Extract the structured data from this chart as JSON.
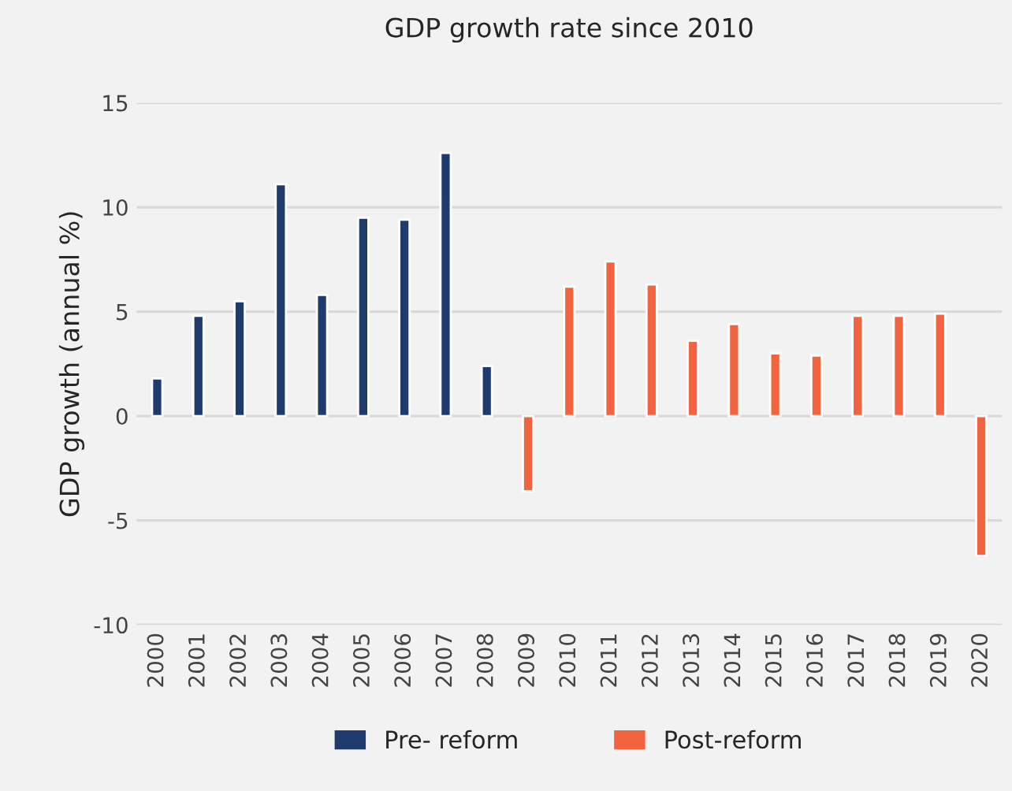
{
  "chart_data": {
    "type": "bar",
    "title": "GDP growth rate since 2010",
    "ylabel": "GDP growth (annual %)",
    "categories": [
      "2000",
      "2001",
      "2002",
      "2003",
      "2004",
      "2005",
      "2006",
      "2007",
      "2008",
      "2009",
      "2010",
      "2011",
      "2012",
      "2013",
      "2014",
      "2015",
      "2016",
      "2017",
      "2018",
      "2019",
      "2020"
    ],
    "series": [
      {
        "name": "Pre- reform",
        "color": "#1f3b6e",
        "values": [
          1.8,
          4.8,
          5.5,
          11.1,
          5.8,
          9.5,
          9.4,
          12.6,
          2.4,
          null,
          null,
          null,
          null,
          null,
          null,
          null,
          null,
          null,
          null,
          null,
          null
        ]
      },
      {
        "name": "Post-reform",
        "color": "#f26440",
        "values": [
          null,
          null,
          null,
          null,
          null,
          null,
          null,
          null,
          null,
          -3.6,
          6.2,
          7.4,
          6.3,
          3.6,
          4.4,
          3.0,
          2.9,
          4.8,
          4.8,
          4.9,
          -6.7
        ]
      }
    ],
    "ylim": [
      -10,
      15
    ],
    "yticks": [
      -10,
      -5,
      0,
      5,
      10,
      15
    ],
    "grid": "y",
    "legend": "bottom"
  }
}
